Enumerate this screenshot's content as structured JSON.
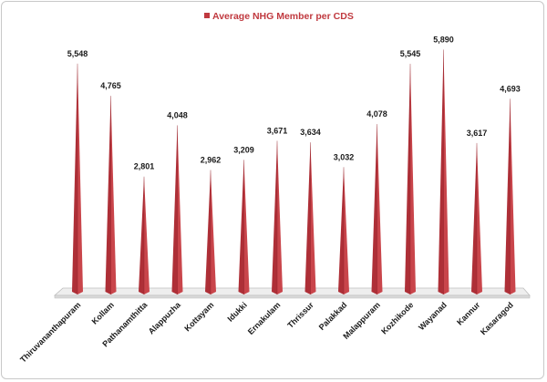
{
  "chart_data": {
    "type": "bar",
    "title": "",
    "xlabel": "",
    "ylabel": "",
    "ylim": [
      0,
      6000
    ],
    "grid": false,
    "legend": {
      "placement": "top-center",
      "label": "Average NHG Member per CDS"
    },
    "categories": [
      "Thiruvananthapuram",
      "Kollam",
      "Pathanamthitta",
      "Alappuzha",
      "Kottayam",
      "Idukki",
      "Ernakulam",
      "Thrissur",
      "Palakkad",
      "Malappuram",
      "Kozhikode",
      "Wayanad",
      "Kannur",
      "Kasaragod"
    ],
    "series": [
      {
        "name": "Average NHG Member per CDS",
        "color": "#c0393f",
        "values": [
          5548,
          4765,
          2801,
          4048,
          2962,
          3209,
          3671,
          3634,
          3032,
          4078,
          5545,
          5890,
          3617,
          4693
        ],
        "value_labels": [
          "5,548",
          "4,765",
          "2,801",
          "4,048",
          "2,962",
          "3,209",
          "3,671",
          "3,634",
          "3,032",
          "4,078",
          "5,545",
          "5,890",
          "3,617",
          "4,693"
        ]
      }
    ]
  }
}
